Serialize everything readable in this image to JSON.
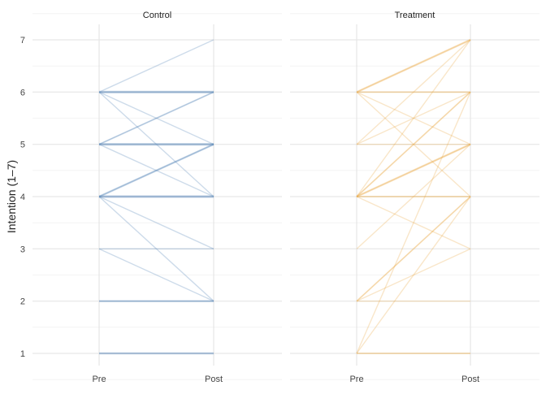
{
  "chart_data": {
    "type": "line",
    "title": "",
    "ylabel": "Intention (1–7)",
    "xlabel": "",
    "ylim": [
      1,
      7
    ],
    "yticks": [
      "1",
      "2",
      "3",
      "4",
      "5",
      "6",
      "7"
    ],
    "xticks": [
      "Pre",
      "Post"
    ],
    "grid": true,
    "legend": "none",
    "panels": [
      {
        "name": "Control",
        "color": "#4a7fb5",
        "pairs": [
          {
            "pre": 6,
            "post": 7,
            "n": 1
          },
          {
            "pre": 6,
            "post": 6,
            "n": 4
          },
          {
            "pre": 6,
            "post": 5,
            "n": 1
          },
          {
            "pre": 6,
            "post": 4,
            "n": 1
          },
          {
            "pre": 5,
            "post": 6,
            "n": 2
          },
          {
            "pre": 5,
            "post": 5,
            "n": 4
          },
          {
            "pre": 5,
            "post": 4,
            "n": 1
          },
          {
            "pre": 4,
            "post": 5,
            "n": 3
          },
          {
            "pre": 4,
            "post": 4,
            "n": 4
          },
          {
            "pre": 4,
            "post": 3,
            "n": 1
          },
          {
            "pre": 4,
            "post": 2,
            "n": 1
          },
          {
            "pre": 3,
            "post": 3,
            "n": 1
          },
          {
            "pre": 3,
            "post": 2,
            "n": 1
          },
          {
            "pre": 2,
            "post": 2,
            "n": 3
          },
          {
            "pre": 1,
            "post": 1,
            "n": 3
          }
        ]
      },
      {
        "name": "Treatment",
        "color": "#e9a53c",
        "pairs": [
          {
            "pre": 6,
            "post": 7,
            "n": 3
          },
          {
            "pre": 6,
            "post": 6,
            "n": 2
          },
          {
            "pre": 6,
            "post": 5,
            "n": 1
          },
          {
            "pre": 6,
            "post": 4,
            "n": 1
          },
          {
            "pre": 5,
            "post": 7,
            "n": 1
          },
          {
            "pre": 5,
            "post": 6,
            "n": 1
          },
          {
            "pre": 5,
            "post": 5,
            "n": 1
          },
          {
            "pre": 4,
            "post": 7,
            "n": 1
          },
          {
            "pre": 4,
            "post": 6,
            "n": 2
          },
          {
            "pre": 4,
            "post": 5,
            "n": 3
          },
          {
            "pre": 4,
            "post": 4,
            "n": 2
          },
          {
            "pre": 4,
            "post": 3,
            "n": 1
          },
          {
            "pre": 3,
            "post": 5,
            "n": 1
          },
          {
            "pre": 2,
            "post": 4,
            "n": 2
          },
          {
            "pre": 2,
            "post": 3,
            "n": 1
          },
          {
            "pre": 2,
            "post": 2,
            "n": 1
          },
          {
            "pre": 1,
            "post": 6,
            "n": 1
          },
          {
            "pre": 1,
            "post": 4,
            "n": 1
          },
          {
            "pre": 1,
            "post": 1,
            "n": 2
          }
        ]
      }
    ]
  }
}
